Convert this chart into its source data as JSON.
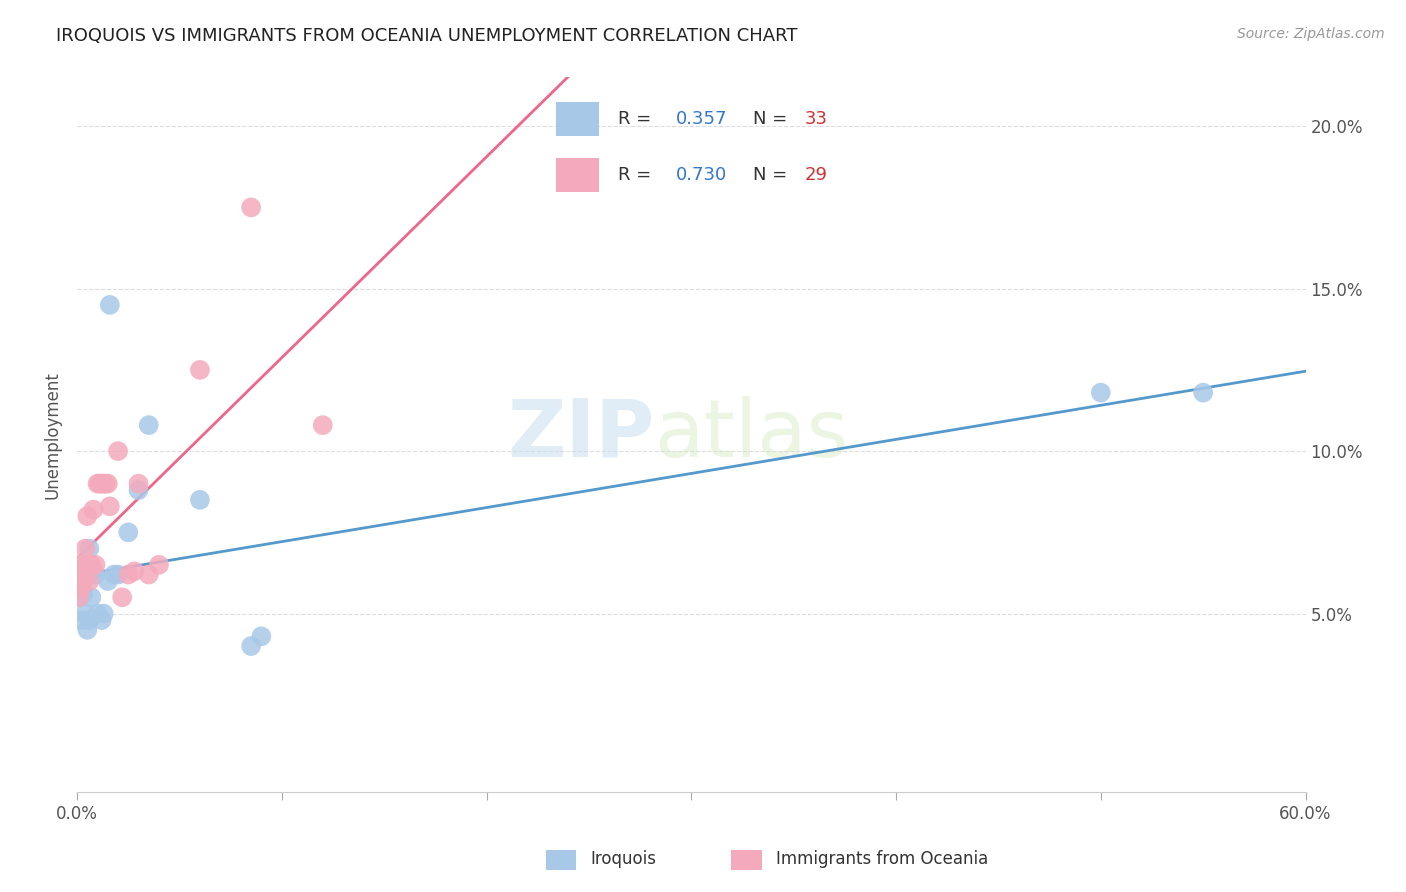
{
  "title": "IROQUOIS VS IMMIGRANTS FROM OCEANIA UNEMPLOYMENT CORRELATION CHART",
  "source": "Source: ZipAtlas.com",
  "ylabel": "Unemployment",
  "yticks": [
    0.05,
    0.1,
    0.15,
    0.2
  ],
  "ytick_labels": [
    "5.0%",
    "10.0%",
    "15.0%",
    "20.0%"
  ],
  "xlim": [
    0.0,
    0.6
  ],
  "ylim": [
    -0.005,
    0.215
  ],
  "label1": "Iroquois",
  "label2": "Immigrants from Oceania",
  "color1": "#a8c8e8",
  "color2": "#f4aabc",
  "line_color1": "#5599cc",
  "line_color2": "#ee6688",
  "watermark_zip": "ZIP",
  "watermark_atlas": "atlas",
  "iroquois_x": [
    0.0005,
    0.001,
    0.001,
    0.001,
    0.002,
    0.002,
    0.002,
    0.003,
    0.003,
    0.004,
    0.004,
    0.005,
    0.005,
    0.006,
    0.006,
    0.007,
    0.008,
    0.009,
    0.01,
    0.012,
    0.013,
    0.015,
    0.016,
    0.018,
    0.02,
    0.025,
    0.03,
    0.035,
    0.06,
    0.085,
    0.09,
    0.5,
    0.55
  ],
  "iroquois_y": [
    0.062,
    0.06,
    0.055,
    0.063,
    0.048,
    0.065,
    0.058,
    0.06,
    0.056,
    0.063,
    0.05,
    0.045,
    0.062,
    0.07,
    0.048,
    0.055,
    0.063,
    0.062,
    0.05,
    0.048,
    0.05,
    0.06,
    0.145,
    0.062,
    0.062,
    0.075,
    0.088,
    0.108,
    0.085,
    0.04,
    0.043,
    0.118,
    0.118
  ],
  "oceania_x": [
    0.0005,
    0.001,
    0.001,
    0.002,
    0.003,
    0.003,
    0.004,
    0.005,
    0.006,
    0.007,
    0.008,
    0.009,
    0.01,
    0.011,
    0.012,
    0.013,
    0.014,
    0.015,
    0.016,
    0.02,
    0.022,
    0.025,
    0.028,
    0.03,
    0.035,
    0.04,
    0.06,
    0.085,
    0.12
  ],
  "oceania_y": [
    0.063,
    0.065,
    0.055,
    0.058,
    0.06,
    0.065,
    0.07,
    0.08,
    0.06,
    0.065,
    0.082,
    0.065,
    0.09,
    0.09,
    0.09,
    0.09,
    0.09,
    0.09,
    0.083,
    0.1,
    0.055,
    0.062,
    0.063,
    0.09,
    0.062,
    0.065,
    0.125,
    0.175,
    0.108
  ]
}
